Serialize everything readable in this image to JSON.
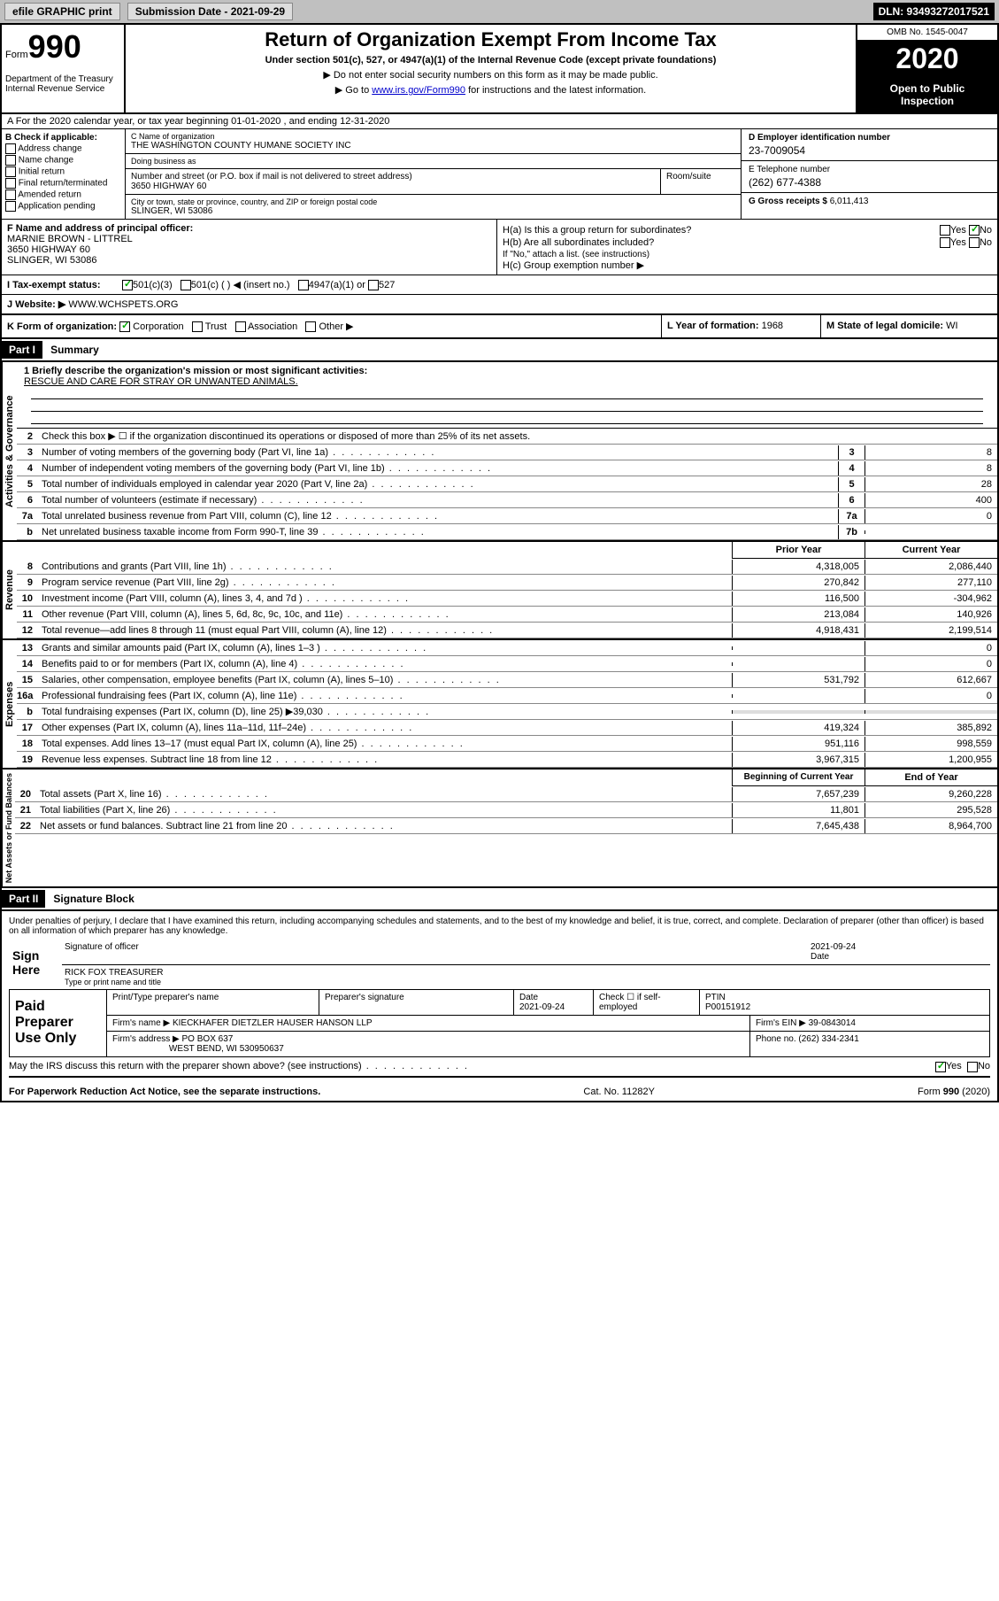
{
  "topbar": {
    "efile": "efile GRAPHIC print",
    "submission_label": "Submission Date - 2021-09-29",
    "dln": "DLN: 93493272017521"
  },
  "header": {
    "form_word": "Form",
    "form_num": "990",
    "dept": "Department of the Treasury\nInternal Revenue Service",
    "title": "Return of Organization Exempt From Income Tax",
    "subtitle": "Under section 501(c), 527, or 4947(a)(1) of the Internal Revenue Code (except private foundations)",
    "note1": "▶ Do not enter social security numbers on this form as it may be made public.",
    "note2_pre": "▶ Go to ",
    "note2_link": "www.irs.gov/Form990",
    "note2_post": " for instructions and the latest information.",
    "omb": "OMB No. 1545-0047",
    "year": "2020",
    "open": "Open to Public Inspection"
  },
  "rowA": "A For the 2020 calendar year, or tax year beginning 01-01-2020    , and ending 12-31-2020",
  "B": {
    "label": "B Check if applicable:",
    "opts": [
      "Address change",
      "Name change",
      "Initial return",
      "Final return/terminated",
      "Amended return",
      "Application pending"
    ]
  },
  "C": {
    "name_lbl": "C Name of organization",
    "name": "THE WASHINGTON COUNTY HUMANE SOCIETY INC",
    "dba_lbl": "Doing business as",
    "dba": "",
    "street_lbl": "Number and street (or P.O. box if mail is not delivered to street address)",
    "street": "3650 HIGHWAY 60",
    "suite_lbl": "Room/suite",
    "city_lbl": "City or town, state or province, country, and ZIP or foreign postal code",
    "city": "SLINGER, WI  53086"
  },
  "D": {
    "lbl": "D Employer identification number",
    "val": "23-7009054"
  },
  "E": {
    "lbl": "E Telephone number",
    "val": "(262) 677-4388"
  },
  "G": {
    "lbl": "G Gross receipts $",
    "val": "6,011,413"
  },
  "F": {
    "lbl": "F Name and address of principal officer:",
    "name": "MARNIE BROWN - LITTREL",
    "addr1": "3650 HIGHWAY 60",
    "addr2": "SLINGER, WI  53086"
  },
  "H": {
    "a": "H(a)  Is this a group return for subordinates?",
    "b": "H(b)  Are all subordinates included?",
    "b_note": "If \"No,\" attach a list. (see instructions)",
    "c": "H(c)  Group exemption number ▶",
    "yes": "Yes",
    "no": "No"
  },
  "I": {
    "lbl": "I   Tax-exempt status:",
    "opts": [
      "501(c)(3)",
      "501(c) (  ) ◀ (insert no.)",
      "4947(a)(1) or",
      "527"
    ]
  },
  "J": {
    "lbl": "J   Website: ▶",
    "val": "WWW.WCHSPETS.ORG"
  },
  "K": {
    "lbl": "K Form of organization:",
    "opts": [
      "Corporation",
      "Trust",
      "Association",
      "Other ▶"
    ]
  },
  "L": {
    "lbl": "L Year of formation:",
    "val": "1968"
  },
  "M": {
    "lbl": "M State of legal domicile:",
    "val": "WI"
  },
  "part1": {
    "hdr": "Part I",
    "title": "Summary"
  },
  "mission": {
    "lbl": "1  Briefly describe the organization's mission or most significant activities:",
    "text": "RESCUE AND CARE FOR STRAY OR UNWANTED ANIMALS."
  },
  "line2": "Check this box ▶ ☐  if the organization discontinued its operations or disposed of more than 25% of its net assets.",
  "gov_lines": [
    {
      "n": "3",
      "t": "Number of voting members of the governing body (Part VI, line 1a)",
      "b": "3",
      "v": "8"
    },
    {
      "n": "4",
      "t": "Number of independent voting members of the governing body (Part VI, line 1b)",
      "b": "4",
      "v": "8"
    },
    {
      "n": "5",
      "t": "Total number of individuals employed in calendar year 2020 (Part V, line 2a)",
      "b": "5",
      "v": "28"
    },
    {
      "n": "6",
      "t": "Total number of volunteers (estimate if necessary)",
      "b": "6",
      "v": "400"
    },
    {
      "n": "7a",
      "t": "Total unrelated business revenue from Part VIII, column (C), line 12",
      "b": "7a",
      "v": "0"
    },
    {
      "n": "b",
      "t": "Net unrelated business taxable income from Form 990-T, line 39",
      "b": "7b",
      "v": ""
    }
  ],
  "col_headers": {
    "prior": "Prior Year",
    "current": "Current Year"
  },
  "rev_lines": [
    {
      "n": "8",
      "t": "Contributions and grants (Part VIII, line 1h)",
      "p": "4,318,005",
      "c": "2,086,440"
    },
    {
      "n": "9",
      "t": "Program service revenue (Part VIII, line 2g)",
      "p": "270,842",
      "c": "277,110"
    },
    {
      "n": "10",
      "t": "Investment income (Part VIII, column (A), lines 3, 4, and 7d )",
      "p": "116,500",
      "c": "-304,962"
    },
    {
      "n": "11",
      "t": "Other revenue (Part VIII, column (A), lines 5, 6d, 8c, 9c, 10c, and 11e)",
      "p": "213,084",
      "c": "140,926"
    },
    {
      "n": "12",
      "t": "Total revenue—add lines 8 through 11 (must equal Part VIII, column (A), line 12)",
      "p": "4,918,431",
      "c": "2,199,514"
    }
  ],
  "exp_lines": [
    {
      "n": "13",
      "t": "Grants and similar amounts paid (Part IX, column (A), lines 1–3 )",
      "p": "",
      "c": "0"
    },
    {
      "n": "14",
      "t": "Benefits paid to or for members (Part IX, column (A), line 4)",
      "p": "",
      "c": "0"
    },
    {
      "n": "15",
      "t": "Salaries, other compensation, employee benefits (Part IX, column (A), lines 5–10)",
      "p": "531,792",
      "c": "612,667"
    },
    {
      "n": "16a",
      "t": "Professional fundraising fees (Part IX, column (A), line 11e)",
      "p": "",
      "c": "0"
    },
    {
      "n": "b",
      "t": "Total fundraising expenses (Part IX, column (D), line 25) ▶39,030",
      "p": "—shade—",
      "c": "—shade—"
    },
    {
      "n": "17",
      "t": "Other expenses (Part IX, column (A), lines 11a–11d, 11f–24e)",
      "p": "419,324",
      "c": "385,892"
    },
    {
      "n": "18",
      "t": "Total expenses. Add lines 13–17 (must equal Part IX, column (A), line 25)",
      "p": "951,116",
      "c": "998,559"
    },
    {
      "n": "19",
      "t": "Revenue less expenses. Subtract line 18 from line 12",
      "p": "3,967,315",
      "c": "1,200,955"
    }
  ],
  "net_headers": {
    "begin": "Beginning of Current Year",
    "end": "End of Year"
  },
  "net_lines": [
    {
      "n": "20",
      "t": "Total assets (Part X, line 16)",
      "p": "7,657,239",
      "c": "9,260,228"
    },
    {
      "n": "21",
      "t": "Total liabilities (Part X, line 26)",
      "p": "11,801",
      "c": "295,528"
    },
    {
      "n": "22",
      "t": "Net assets or fund balances. Subtract line 21 from line 20",
      "p": "7,645,438",
      "c": "8,964,700"
    }
  ],
  "vtabs": {
    "gov": "Activities & Governance",
    "rev": "Revenue",
    "exp": "Expenses",
    "net": "Net Assets or Fund Balances"
  },
  "part2": {
    "hdr": "Part II",
    "title": "Signature Block"
  },
  "sig": {
    "penalty": "Under penalties of perjury, I declare that I have examined this return, including accompanying schedules and statements, and to the best of my knowledge and belief, it is true, correct, and complete. Declaration of preparer (other than officer) is based on all information of which preparer has any knowledge.",
    "sign_here": "Sign Here",
    "sig_officer": "Signature of officer",
    "date": "2021-09-24",
    "date_lbl": "Date",
    "name": "RICK FOX  TREASURER",
    "name_lbl": "Type or print name and title"
  },
  "prep": {
    "label": "Paid Preparer Use Only",
    "print_lbl": "Print/Type preparer's name",
    "sig_lbl": "Preparer's signature",
    "date_lbl": "Date",
    "date": "2021-09-24",
    "check_lbl": "Check ☐ if self-employed",
    "ptin_lbl": "PTIN",
    "ptin": "P00151912",
    "firm_name_lbl": "Firm's name    ▶",
    "firm_name": "KIECKHAFER DIETZLER HAUSER HANSON LLP",
    "firm_ein_lbl": "Firm's EIN ▶",
    "firm_ein": "39-0843014",
    "firm_addr_lbl": "Firm's address ▶",
    "firm_addr1": "PO BOX 637",
    "firm_addr2": "WEST BEND, WI  530950637",
    "phone_lbl": "Phone no.",
    "phone": "(262) 334-2341"
  },
  "discuss": {
    "text": "May the IRS discuss this return with the preparer shown above? (see instructions)",
    "yes": "Yes",
    "no": "No"
  },
  "footer": {
    "left": "For Paperwork Reduction Act Notice, see the separate instructions.",
    "mid": "Cat. No. 11282Y",
    "right": "Form 990 (2020)"
  }
}
